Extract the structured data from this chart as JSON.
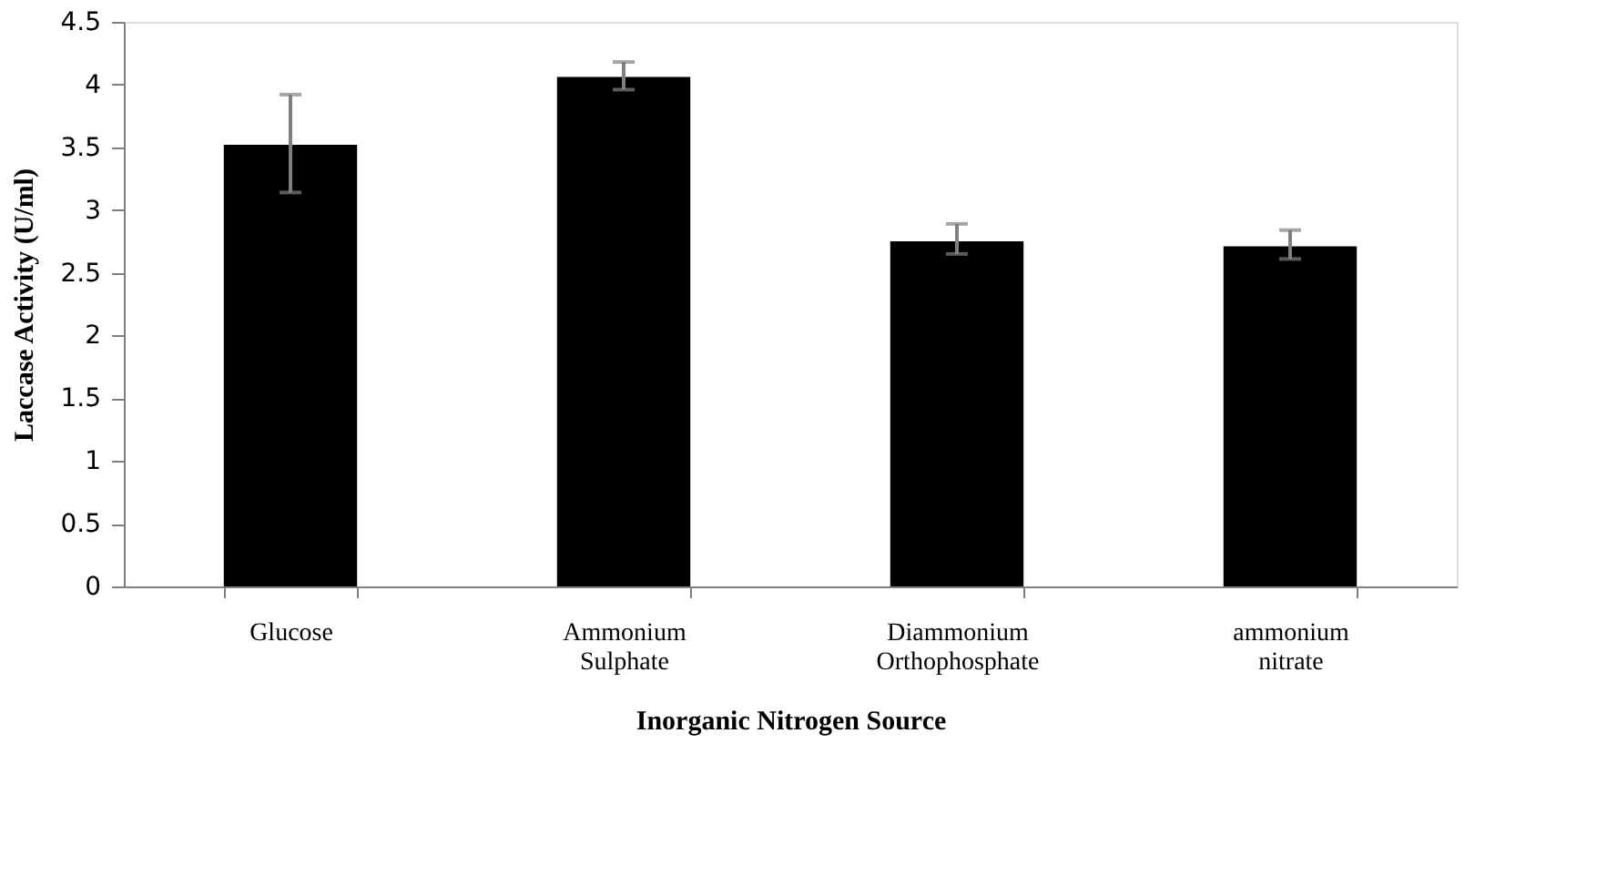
{
  "chart_data": {
    "type": "bar",
    "xlabel": "Inorganic Nitrogen Source",
    "ylabel": "Laccase Activity (U/ml)",
    "categories": [
      "Glucose",
      "Ammonium Sulphate",
      "Diammonium Orthophosphate",
      "ammonium nitrate"
    ],
    "values": [
      3.52,
      4.06,
      2.75,
      2.71
    ],
    "errors": [
      [
        3.14,
        3.92
      ],
      [
        3.96,
        4.18
      ],
      [
        2.65,
        2.89
      ],
      [
        2.61,
        2.84
      ]
    ],
    "color": "#000000",
    "ylim": [
      0,
      4.5
    ],
    "yticks": [
      0,
      0.5,
      1,
      1.5,
      2,
      2.5,
      3,
      3.5,
      4,
      4.5
    ],
    "grid": false
  }
}
